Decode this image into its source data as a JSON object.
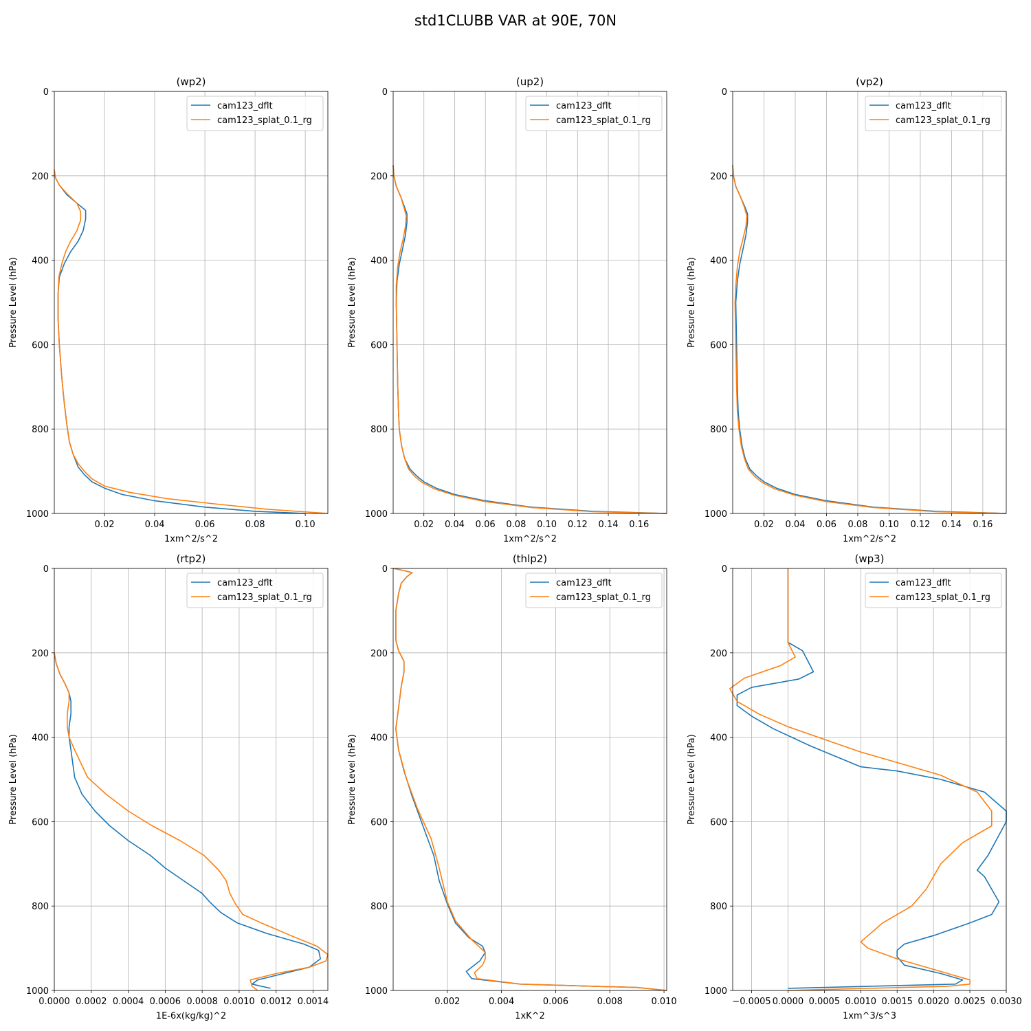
{
  "suptitle": "std1CLUBB VAR at 90E, 70N",
  "colors": {
    "cam123_dflt": "#1f77b4",
    "cam123_splat_0.1_rg": "#ff7f0e"
  },
  "chart_data": [
    {
      "type": "line",
      "title": "(wp2)",
      "xlabel": "1xm^2/s^2",
      "ylabel": "Pressure Level (hPa)",
      "xlim": [
        0,
        0.109
      ],
      "ylim": [
        1000,
        0
      ],
      "xticks": [
        0.02,
        0.04,
        0.06,
        0.08,
        0.1
      ],
      "xtick_labels": [
        "0.02",
        "0.04",
        "0.06",
        "0.08",
        "0.10"
      ],
      "yticks": [
        0,
        200,
        400,
        600,
        800,
        1000
      ],
      "ytick_labels": [
        "0",
        "200",
        "400",
        "600",
        "800",
        "1000"
      ],
      "grid": true,
      "legend": "top-right",
      "series": [
        {
          "name": "cam123_dflt",
          "x": [
            0,
            0.0005,
            0.002,
            0.005,
            0.009,
            0.0125,
            0.0125,
            0.0115,
            0.0095,
            0.0065,
            0.004,
            0.002,
            0.0015,
            0.0015,
            0.002,
            0.003,
            0.004,
            0.005,
            0.006,
            0.0075,
            0.0095,
            0.012,
            0.015,
            0.02,
            0.027,
            0.04,
            0.06,
            0.08,
            0.1
          ],
          "y": [
            190,
            205,
            222,
            245,
            265,
            282,
            302,
            330,
            355,
            380,
            408,
            440,
            480,
            540,
            600,
            680,
            740,
            790,
            830,
            860,
            890,
            908,
            925,
            940,
            955,
            970,
            985,
            995,
            1000
          ]
        },
        {
          "name": "cam123_splat_0.1_rg",
          "x": [
            0,
            0.0005,
            0.002,
            0.005,
            0.009,
            0.0105,
            0.0105,
            0.009,
            0.0065,
            0.0045,
            0.003,
            0.0018,
            0.0015,
            0.0015,
            0.002,
            0.003,
            0.004,
            0.005,
            0.006,
            0.0075,
            0.0095,
            0.012,
            0.015,
            0.02,
            0.03,
            0.045,
            0.065,
            0.085,
            0.109
          ],
          "y": [
            185,
            205,
            222,
            242,
            265,
            285,
            305,
            330,
            355,
            380,
            408,
            440,
            480,
            540,
            600,
            680,
            740,
            790,
            830,
            860,
            882,
            900,
            918,
            935,
            950,
            965,
            978,
            990,
            1000
          ]
        }
      ]
    },
    {
      "type": "line",
      "title": "(up2)",
      "xlabel": "1xm^2/s^2",
      "ylabel": "Pressure Level (hPa)",
      "xlim": [
        0,
        0.178
      ],
      "ylim": [
        1000,
        0
      ],
      "xticks": [
        0.02,
        0.04,
        0.06,
        0.08,
        0.1,
        0.12,
        0.14,
        0.16
      ],
      "xtick_labels": [
        "0.02",
        "0.04",
        "0.06",
        "0.08",
        "0.10",
        "0.12",
        "0.14",
        "0.16"
      ],
      "yticks": [
        0,
        200,
        400,
        600,
        800,
        1000
      ],
      "ytick_labels": [
        "0",
        "200",
        "400",
        "600",
        "800",
        "1000"
      ],
      "grid": true,
      "legend": "top-right",
      "series": [
        {
          "name": "cam123_dflt",
          "x": [
            0,
            0.0005,
            0.002,
            0.005,
            0.0075,
            0.009,
            0.009,
            0.008,
            0.006,
            0.004,
            0.0025,
            0.002,
            0.0025,
            0.003,
            0.0035,
            0.004,
            0.0055,
            0.0075,
            0.011,
            0.015,
            0.02,
            0.028,
            0.04,
            0.06,
            0.09,
            0.13,
            0.178
          ],
          "y": [
            175,
            200,
            225,
            250,
            275,
            290,
            310,
            340,
            375,
            410,
            450,
            500,
            600,
            700,
            760,
            800,
            840,
            870,
            895,
            910,
            925,
            940,
            955,
            970,
            985,
            995,
            1000
          ]
        },
        {
          "name": "cam123_splat_0.1_rg",
          "x": [
            0,
            0.0005,
            0.002,
            0.005,
            0.007,
            0.0085,
            0.008,
            0.0065,
            0.0045,
            0.003,
            0.002,
            0.002,
            0.0025,
            0.003,
            0.0035,
            0.004,
            0.0055,
            0.0075,
            0.01,
            0.014,
            0.019,
            0.027,
            0.04,
            0.06,
            0.09,
            0.13,
            0.178
          ],
          "y": [
            175,
            200,
            225,
            250,
            275,
            295,
            320,
            350,
            380,
            415,
            460,
            500,
            600,
            700,
            760,
            800,
            840,
            870,
            895,
            912,
            927,
            942,
            957,
            972,
            986,
            996,
            1000
          ]
        }
      ]
    },
    {
      "type": "line",
      "title": "(vp2)",
      "xlabel": "1xm^2/s^2",
      "ylabel": "Pressure Level (hPa)",
      "xlim": [
        0,
        0.175
      ],
      "ylim": [
        1000,
        0
      ],
      "xticks": [
        0.02,
        0.04,
        0.06,
        0.08,
        0.1,
        0.12,
        0.14,
        0.16
      ],
      "xtick_labels": [
        "0.02",
        "0.04",
        "0.06",
        "0.08",
        "0.10",
        "0.12",
        "0.14",
        "0.16"
      ],
      "yticks": [
        0,
        200,
        400,
        600,
        800,
        1000
      ],
      "ytick_labels": [
        "0",
        "200",
        "400",
        "600",
        "800",
        "1000"
      ],
      "grid": true,
      "legend": "top-right",
      "series": [
        {
          "name": "cam123_dflt",
          "x": [
            0,
            0.0005,
            0.002,
            0.005,
            0.008,
            0.0095,
            0.0095,
            0.0085,
            0.0065,
            0.0045,
            0.003,
            0.002,
            0.0025,
            0.003,
            0.0035,
            0.0045,
            0.006,
            0.008,
            0.011,
            0.015,
            0.02,
            0.028,
            0.04,
            0.06,
            0.09,
            0.13,
            0.175
          ],
          "y": [
            175,
            200,
            225,
            250,
            275,
            290,
            310,
            340,
            375,
            410,
            450,
            500,
            600,
            700,
            760,
            800,
            840,
            870,
            895,
            910,
            925,
            940,
            955,
            970,
            985,
            995,
            1000
          ]
        },
        {
          "name": "cam123_splat_0.1_rg",
          "x": [
            0,
            0.0005,
            0.002,
            0.005,
            0.0075,
            0.009,
            0.0085,
            0.0065,
            0.0045,
            0.003,
            0.002,
            0.0015,
            0.002,
            0.0025,
            0.003,
            0.004,
            0.0055,
            0.0075,
            0.01,
            0.014,
            0.019,
            0.027,
            0.04,
            0.06,
            0.09,
            0.13,
            0.175
          ],
          "y": [
            175,
            200,
            225,
            250,
            275,
            295,
            320,
            350,
            380,
            415,
            460,
            500,
            600,
            700,
            760,
            800,
            840,
            870,
            895,
            912,
            927,
            942,
            957,
            972,
            986,
            996,
            1000
          ]
        }
      ]
    },
    {
      "type": "line",
      "title": "(rtp2)",
      "xlabel": "1E-6x(kg/kg)^2",
      "ylabel": "Pressure Level (hPa)",
      "xlim": [
        0,
        0.00148
      ],
      "ylim": [
        1000,
        0
      ],
      "xticks": [
        0,
        0.0002,
        0.0004,
        0.0006,
        0.0008,
        0.001,
        0.0012,
        0.0014
      ],
      "xtick_labels": [
        "0.0000",
        "0.0002",
        "0.0004",
        "0.0006",
        "0.0008",
        "0.0010",
        "0.0012",
        "0.0014"
      ],
      "yticks": [
        0,
        200,
        400,
        600,
        800,
        1000
      ],
      "ytick_labels": [
        "0",
        "200",
        "400",
        "600",
        "800",
        "1000"
      ],
      "grid": true,
      "legend": "top-right",
      "series": [
        {
          "name": "cam123_dflt",
          "x": [
            0,
            1e-05,
            3e-05,
            6e-05,
            8e-05,
            9e-05,
            9e-05,
            8e-05,
            8e-05,
            9e-05,
            0.00011,
            0.00015,
            0.00022,
            0.0003,
            0.0004,
            0.00052,
            0.0006,
            0.0007,
            0.0008,
            0.00084,
            0.0009,
            0.00099,
            0.00115,
            0.00135,
            0.00143,
            0.00144,
            0.00138,
            0.00124,
            0.0011,
            0.00107,
            0.00117
          ],
          "y": [
            200,
            225,
            250,
            275,
            295,
            315,
            345,
            375,
            400,
            430,
            495,
            535,
            575,
            610,
            645,
            680,
            710,
            740,
            770,
            790,
            815,
            840,
            865,
            890,
            905,
            925,
            945,
            960,
            975,
            985,
            995
          ]
        },
        {
          "name": "cam123_splat_0.1_rg",
          "x": [
            0,
            1e-05,
            3e-05,
            6e-05,
            8e-05,
            8e-05,
            7e-05,
            7e-05,
            8e-05,
            0.00011,
            0.00018,
            0.00028,
            0.0004,
            0.00053,
            0.00068,
            0.00081,
            0.00089,
            0.00093,
            0.00095,
            0.00098,
            0.00102,
            0.00112,
            0.00128,
            0.00142,
            0.00148,
            0.00147,
            0.00138,
            0.0012,
            0.00106,
            0.00107,
            0.0011
          ],
          "y": [
            200,
            225,
            250,
            275,
            295,
            315,
            345,
            375,
            400,
            430,
            495,
            535,
            575,
            610,
            645,
            680,
            715,
            740,
            770,
            795,
            820,
            840,
            870,
            895,
            915,
            930,
            945,
            960,
            975,
            990,
            1000
          ]
        }
      ]
    },
    {
      "type": "line",
      "title": "(thlp2)",
      "xlabel": "1xK^2",
      "ylabel": "Pressure Level (hPa)",
      "xlim": [
        0,
        0.0101
      ],
      "ylim": [
        1000,
        0
      ],
      "xticks": [
        0.002,
        0.004,
        0.006,
        0.008,
        0.01
      ],
      "xtick_labels": [
        "0.002",
        "0.004",
        "0.006",
        "0.008",
        "0.010"
      ],
      "yticks": [
        0,
        200,
        400,
        600,
        800,
        1000
      ],
      "ytick_labels": [
        "0",
        "200",
        "400",
        "600",
        "800",
        "1000"
      ],
      "grid": true,
      "legend": "top-right",
      "series": [
        {
          "name": "cam123_dflt",
          "x": [
            0,
            0.0004,
            0.0007,
            0.0005,
            0.0003,
            0.0002,
            0.0001,
            0.0001,
            0.0002,
            0.0004,
            0.0004,
            0.0003,
            0.0002,
            0.0001,
            0.0002,
            0.0004,
            0.0007,
            0.0011,
            0.0015,
            0.0017,
            0.002,
            0.0023,
            0.0028,
            0.0033,
            0.0034,
            0.0032,
            0.0027,
            0.0029,
            0.0047,
            0.009,
            0.0101
          ],
          "y": [
            0,
            5,
            10,
            20,
            35,
            60,
            100,
            170,
            195,
            220,
            245,
            280,
            330,
            380,
            430,
            480,
            540,
            610,
            680,
            740,
            795,
            840,
            875,
            895,
            910,
            930,
            955,
            972,
            985,
            993,
            1000
          ]
        },
        {
          "name": "cam123_splat_0.1_rg",
          "x": [
            0,
            0.0004,
            0.0007,
            0.0005,
            0.0003,
            0.0002,
            0.0001,
            0.0001,
            0.0002,
            0.0004,
            0.0004,
            0.0003,
            0.0002,
            0.0001,
            0.0002,
            0.0005,
            0.0009,
            0.0014,
            0.0017,
            0.002,
            0.0023,
            0.0029,
            0.0034,
            0.0034,
            0.0033,
            0.003,
            0.0031,
            0.0047,
            0.009,
            0.0101
          ],
          "y": [
            0,
            5,
            10,
            20,
            35,
            60,
            100,
            170,
            195,
            220,
            245,
            280,
            330,
            380,
            430,
            500,
            570,
            640,
            710,
            790,
            835,
            880,
            910,
            925,
            940,
            958,
            972,
            985,
            993,
            1000
          ]
        }
      ]
    },
    {
      "type": "line",
      "title": "(wp3)",
      "xlabel": "1xm^3/s^3",
      "ylabel": "Pressure Level (hPa)",
      "xlim": [
        -0.00076,
        0.003
      ],
      "ylim": [
        1000,
        0
      ],
      "xticks": [
        -0.0005,
        0,
        0.0005,
        0.001,
        0.0015,
        0.002,
        0.0025,
        0.003
      ],
      "xtick_labels": [
        "−0.0005",
        "0.0000",
        "0.0005",
        "0.0010",
        "0.0015",
        "0.0020",
        "0.0025",
        "0.0030"
      ],
      "yticks": [
        0,
        200,
        400,
        600,
        800,
        1000
      ],
      "ytick_labels": [
        "0",
        "200",
        "400",
        "600",
        "800",
        "1000"
      ],
      "grid": true,
      "legend": "top-right",
      "series": [
        {
          "name": "cam123_dflt",
          "x": [
            0,
            0,
            0.0002,
            0.00035,
            0.00015,
            -0.0005,
            -0.0007,
            -0.0007,
            -0.0005,
            -0.0002,
            0.0003,
            0.001,
            0.0015,
            0.0021,
            0.0027,
            0.003,
            0.003,
            0.00275,
            0.0026,
            0.0027,
            0.0029,
            0.0028,
            0.0025,
            0.002,
            0.0016,
            0.0015,
            0.0015,
            0.0016,
            0.0021,
            0.0024,
            0.0023,
            0
          ],
          "y": [
            0,
            175,
            195,
            245,
            262,
            282,
            300,
            325,
            350,
            380,
            420,
            470,
            480,
            500,
            530,
            575,
            600,
            680,
            715,
            730,
            790,
            820,
            840,
            870,
            890,
            905,
            920,
            940,
            960,
            975,
            985,
            995
          ]
        },
        {
          "name": "cam123_splat_0.1_rg",
          "x": [
            0,
            0,
            0.0001,
            -0.0001,
            -0.0006,
            -0.0008,
            -0.0007,
            -0.0004,
            0,
            0.0005,
            0.001,
            0.0015,
            0.0021,
            0.0026,
            0.0028,
            0.0028,
            0.0024,
            0.0021,
            0.0019,
            0.0017,
            0.0013,
            0.0011,
            0.001,
            0.0011,
            0.0015,
            0.0021,
            0.0025,
            0.0025,
            0.0022,
            0
          ],
          "y": [
            0,
            175,
            210,
            230,
            260,
            285,
            315,
            345,
            375,
            405,
            435,
            460,
            490,
            530,
            575,
            610,
            650,
            700,
            760,
            800,
            840,
            870,
            885,
            900,
            925,
            955,
            975,
            985,
            990,
            1000
          ]
        }
      ]
    }
  ]
}
